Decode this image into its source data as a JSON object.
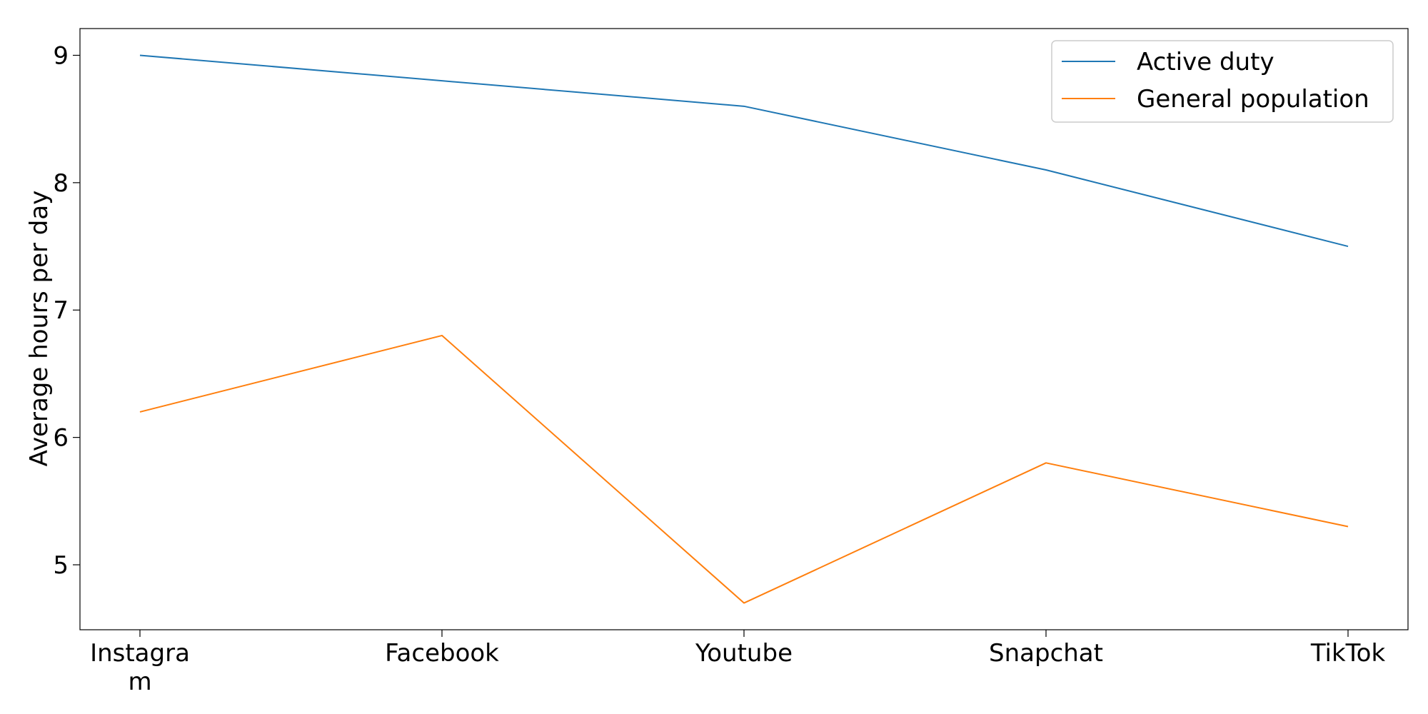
{
  "chart_data": {
    "type": "line",
    "categories": [
      "Instagram",
      "Facebook",
      "Youtube",
      "Snapchat",
      "TikTok"
    ],
    "category_display": [
      [
        "Instagra",
        "m"
      ],
      [
        "Facebook"
      ],
      [
        "Youtube"
      ],
      [
        "Snapchat"
      ],
      [
        "TikTok"
      ]
    ],
    "series": [
      {
        "name": "Active duty",
        "values": [
          9.0,
          8.8,
          8.6,
          8.1,
          7.5
        ],
        "color": "#1f77b4"
      },
      {
        "name": "General population",
        "values": [
          6.2,
          6.8,
          4.7,
          5.8,
          5.3
        ],
        "color": "#ff7f0e"
      }
    ],
    "xlabel": "",
    "ylabel": "Average hours per day",
    "ylim": [
      4.49,
      9.21
    ],
    "yticks": [
      "5",
      "6",
      "7",
      "8",
      "9"
    ],
    "grid": false,
    "legend_position": "top-right"
  }
}
